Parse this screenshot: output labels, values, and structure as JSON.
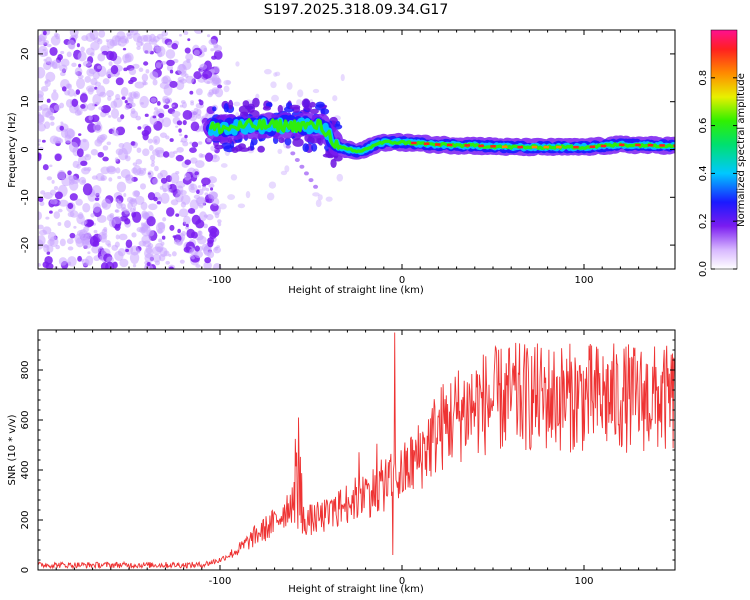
{
  "chart_data": [
    {
      "type": "heatmap",
      "title": "S197.2025.318.09.34.G17",
      "xlabel": "Height of straight line (km)",
      "ylabel": "Frequency (Hz)",
      "xlim": [
        -200,
        150
      ],
      "ylim": [
        -25,
        25
      ],
      "x_ticks": [
        -100,
        0,
        100
      ],
      "x_tick_labels": [
        "-100",
        "0",
        "100"
      ],
      "y_ticks": [
        -20,
        -10,
        0,
        10,
        20
      ],
      "y_tick_labels": [
        "-20",
        "-10",
        "0",
        "10",
        "20"
      ],
      "colorbar": {
        "label": "Normalized spectral amplitude",
        "range": [
          0.0,
          1.0
        ],
        "ticks": [
          0.0,
          0.2,
          0.4,
          0.6,
          0.8
        ],
        "tick_labels": [
          "0.0",
          "0.2",
          "0.4",
          "0.6",
          "0.8"
        ]
      },
      "ridge": {
        "x": [
          -105,
          -95,
          -85,
          -75,
          -65,
          -55,
          -45,
          -40,
          -35,
          -30,
          -25,
          -20,
          -15,
          -10,
          -5,
          0,
          20,
          40,
          60,
          80,
          100,
          120,
          150
        ],
        "y": [
          4.5,
          4.5,
          5,
          5,
          5,
          5,
          5,
          3,
          0.5,
          0,
          -0.5,
          0,
          1,
          1.5,
          1.5,
          1.5,
          1,
          0.8,
          0.5,
          0.5,
          0.5,
          1,
          0.8
        ]
      }
    },
    {
      "type": "line",
      "xlabel": "Height of straight line (km)",
      "ylabel": "SNR (10 * v/v)",
      "xlim": [
        -200,
        150
      ],
      "ylim": [
        0,
        960
      ],
      "x_ticks": [
        -100,
        0,
        100
      ],
      "x_tick_labels": [
        "-100",
        "0",
        "100"
      ],
      "y_ticks": [
        0,
        200,
        400,
        600,
        800
      ],
      "y_tick_labels": [
        "0",
        "200",
        "400",
        "600",
        "800"
      ],
      "series": [
        {
          "name": "SNR",
          "color": "#ee3333",
          "envelope_x": [
            -200,
            -110,
            -100,
            -90,
            -80,
            -70,
            -60,
            -55,
            -50,
            -40,
            -30,
            -20,
            -10,
            0,
            10,
            20,
            30,
            40,
            60,
            80,
            100,
            120,
            150
          ],
          "envelope_y": [
            20,
            20,
            40,
            80,
            140,
            190,
            280,
            200,
            200,
            220,
            270,
            300,
            340,
            380,
            460,
            560,
            620,
            660,
            690,
            690,
            690,
            690,
            680
          ],
          "spikes": [
            {
              "x": -57,
              "y": 610
            },
            {
              "x": -58,
              "y": 470
            },
            {
              "x": -4,
              "y": 950
            },
            {
              "x": -5,
              "y": 60
            }
          ]
        }
      ]
    }
  ]
}
